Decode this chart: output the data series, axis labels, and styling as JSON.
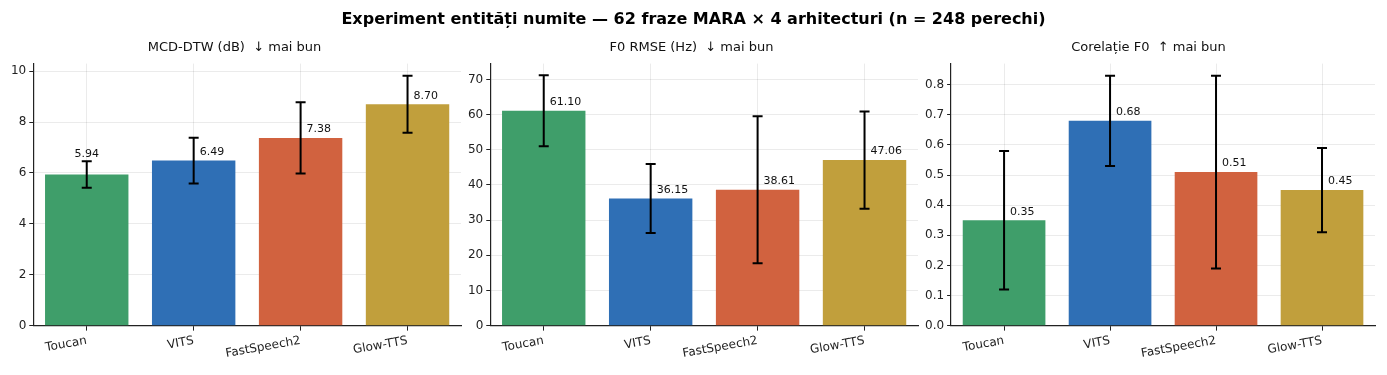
{
  "chart_data": [
    {
      "type": "bar",
      "title": "Experiment entități numite — 62 fraze MARA × 4 arhitecturi (n = 248 perechi)",
      "subtitle": "MCD-DTW (dB)  ↓ mai bun",
      "categories": [
        "Toucan",
        "VITS",
        "FastSpeech2",
        "Glow-TTS"
      ],
      "values": [
        5.94,
        6.49,
        7.38,
        8.7
      ],
      "colors": [
        "#3f9e6a",
        "#2f6fb5",
        "#d1623f",
        "#c19f3c"
      ],
      "errors": [
        0.52,
        0.9,
        1.4,
        1.12
      ],
      "value_labels": [
        "5.94",
        "6.49",
        "7.38",
        "8.70"
      ],
      "ylim": [
        0,
        10.3
      ],
      "yticks": [
        0,
        2,
        4,
        6,
        8,
        10
      ],
      "grid": true
    },
    {
      "type": "bar",
      "subtitle": "F0 RMSE (Hz)  ↓ mai bun",
      "categories": [
        "Toucan",
        "VITS",
        "FastSpeech2",
        "Glow-TTS"
      ],
      "values": [
        61.1,
        36.15,
        38.61,
        47.06
      ],
      "colors": [
        "#3f9e6a",
        "#2f6fb5",
        "#d1623f",
        "#c19f3c"
      ],
      "errors": [
        10.1,
        9.8,
        20.9,
        13.8
      ],
      "value_labels": [
        "61.10",
        "36.15",
        "38.61",
        "47.06"
      ],
      "ylim": [
        0,
        74.5
      ],
      "yticks": [
        0,
        10,
        20,
        30,
        40,
        50,
        60,
        70
      ],
      "grid": true
    },
    {
      "type": "bar",
      "subtitle": "Corelație F0  ↑ mai bun",
      "categories": [
        "Toucan",
        "VITS",
        "FastSpeech2",
        "Glow-TTS"
      ],
      "values": [
        0.35,
        0.68,
        0.51,
        0.45
      ],
      "colors": [
        "#3f9e6a",
        "#2f6fb5",
        "#d1623f",
        "#c19f3c"
      ],
      "errors": [
        0.23,
        0.15,
        0.32,
        0.14
      ],
      "value_labels": [
        "0.35",
        "0.68",
        "0.51",
        "0.45"
      ],
      "ylim": [
        0,
        0.87
      ],
      "yticks": [
        {
          "value": 0,
          "label": "0.0"
        },
        0.1,
        0.2,
        0.3,
        0.4,
        0.5,
        0.6,
        0.7,
        0.8
      ],
      "grid": true
    }
  ]
}
